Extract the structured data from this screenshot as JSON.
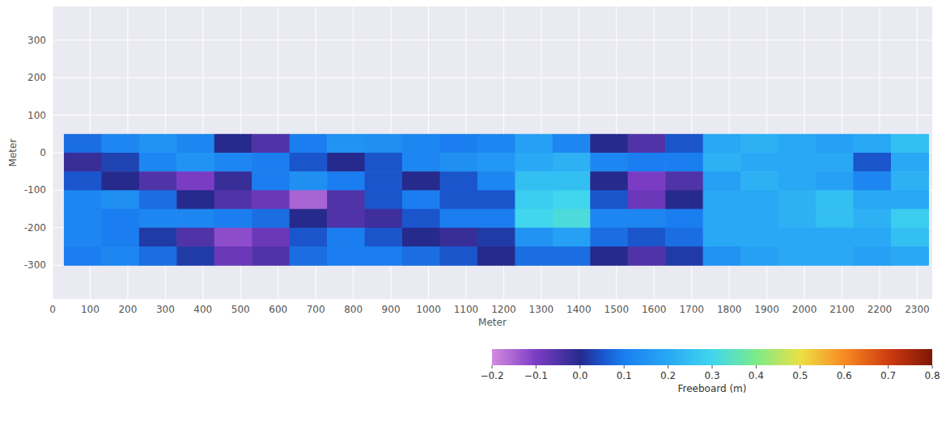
{
  "chart_data": {
    "type": "heatmap",
    "xlabel": "Meter",
    "ylabel": "Meter",
    "xlim": [
      0,
      2340
    ],
    "ylim": [
      -390,
      390
    ],
    "xticks": [
      0,
      100,
      200,
      300,
      400,
      500,
      600,
      700,
      800,
      900,
      1000,
      1100,
      1200,
      1300,
      1400,
      1500,
      1600,
      1700,
      1800,
      1900,
      2000,
      2100,
      2200,
      2300
    ],
    "yticks": [
      -300,
      -200,
      -100,
      0,
      100,
      200,
      300
    ],
    "grid": true,
    "x_edges": [
      30,
      130,
      230,
      330,
      430,
      530,
      630,
      730,
      830,
      930,
      1030,
      1130,
      1230,
      1330,
      1430,
      1530,
      1630,
      1730,
      1830,
      1930,
      2030,
      2130,
      2230,
      2330
    ],
    "y_edges": [
      50,
      0,
      -50,
      -100,
      -150,
      -200,
      -250,
      -300
    ],
    "values": [
      [
        0.08,
        0.12,
        0.15,
        0.12,
        0.0,
        -0.05,
        0.1,
        0.15,
        0.14,
        0.12,
        0.1,
        0.12,
        0.18,
        0.12,
        0.0,
        -0.05,
        0.05,
        0.2,
        0.22,
        0.2,
        0.18,
        0.2,
        0.25
      ],
      [
        -0.02,
        0.03,
        0.12,
        0.15,
        0.12,
        0.1,
        0.05,
        0.0,
        0.05,
        0.12,
        0.14,
        0.16,
        0.2,
        0.22,
        0.12,
        0.1,
        0.1,
        0.22,
        0.2,
        0.2,
        0.2,
        0.05,
        0.2
      ],
      [
        0.05,
        0.0,
        -0.05,
        -0.1,
        -0.02,
        0.1,
        0.14,
        0.1,
        0.05,
        0.0,
        0.05,
        0.12,
        0.25,
        0.25,
        0.0,
        -0.1,
        -0.05,
        0.18,
        0.22,
        0.2,
        0.18,
        0.12,
        0.22
      ],
      [
        0.12,
        0.14,
        0.08,
        0.0,
        -0.05,
        -0.08,
        -0.15,
        -0.05,
        0.05,
        0.1,
        0.05,
        0.05,
        0.28,
        0.3,
        0.05,
        -0.08,
        0.0,
        0.2,
        0.2,
        0.22,
        0.25,
        0.2,
        0.2
      ],
      [
        0.12,
        0.1,
        0.12,
        0.12,
        0.1,
        0.08,
        0.0,
        -0.05,
        -0.03,
        0.05,
        0.1,
        0.1,
        0.3,
        0.32,
        0.12,
        0.12,
        0.1,
        0.2,
        0.2,
        0.22,
        0.25,
        0.22,
        0.28
      ],
      [
        0.12,
        0.1,
        0.02,
        -0.05,
        -0.12,
        -0.08,
        0.05,
        0.1,
        0.05,
        0.0,
        -0.02,
        0.02,
        0.15,
        0.18,
        0.08,
        0.05,
        0.08,
        0.2,
        0.2,
        0.2,
        0.2,
        0.2,
        0.25
      ],
      [
        0.1,
        0.12,
        0.08,
        0.02,
        -0.08,
        -0.05,
        0.08,
        0.1,
        0.1,
        0.08,
        0.05,
        0.0,
        0.08,
        0.08,
        0.0,
        -0.05,
        0.02,
        0.15,
        0.18,
        0.2,
        0.2,
        0.18,
        0.2
      ]
    ],
    "colorbar": {
      "label": "Freeboard (m)",
      "range": [
        -0.2,
        0.8
      ],
      "ticks": [
        -0.2,
        -0.1,
        {
          "value": 0,
          "label": "0.0"
        },
        0.1,
        0.2,
        0.3,
        0.4,
        0.5,
        0.6,
        0.7,
        0.8
      ]
    }
  }
}
